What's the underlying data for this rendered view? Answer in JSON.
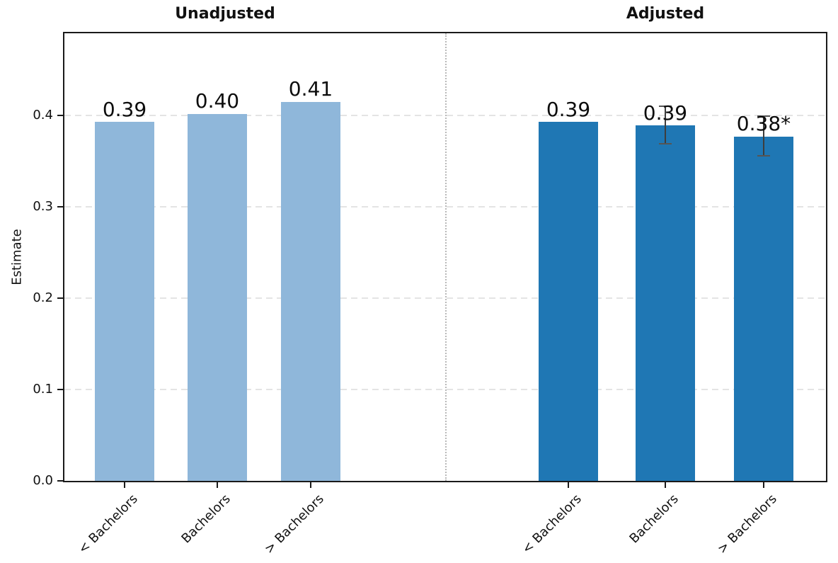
{
  "chart_data": {
    "type": "bar",
    "ylabel": "Estimate",
    "ylim": [
      0,
      0.49
    ],
    "yticks": [
      0,
      0.1,
      0.2,
      0.3,
      0.4
    ],
    "ytick_labels": [
      "0.0",
      "0.1",
      "0.2",
      "0.3",
      "0.4"
    ],
    "grid": "horizontal dashed, panel divider vertical dotted at center",
    "legend": "none",
    "panels": [
      {
        "title": "Unadjusted",
        "bar_color": "#8fb7da",
        "categories": [
          "< Bachelors",
          "Bachelors",
          "> Bachelors"
        ],
        "values": [
          0.393,
          0.402,
          0.415
        ],
        "bar_labels": [
          "0.39",
          "0.40",
          "0.41"
        ],
        "error_bars": [
          null,
          null,
          null
        ]
      },
      {
        "title": "Adjusted",
        "bar_color": "#1f77b4",
        "categories": [
          "< Bachelors",
          "Bachelors",
          "> Bachelors"
        ],
        "values": [
          0.393,
          0.389,
          0.377
        ],
        "bar_labels": [
          "0.39",
          "0.39",
          "0.38*"
        ],
        "error_bars": [
          null,
          {
            "low": 0.369,
            "high": 0.41
          },
          {
            "low": 0.356,
            "high": 0.399
          }
        ]
      }
    ],
    "annotations": {
      "significance_marker": "*",
      "significance_on": "Adjusted > Bachelors"
    },
    "colors": {
      "background": "#ffffff",
      "spine": "#1a1a1a",
      "gridline": "#e4e4e4",
      "divider": "#b9b9b9",
      "error_bar": "#3d3d3d",
      "text": "#111111"
    }
  }
}
